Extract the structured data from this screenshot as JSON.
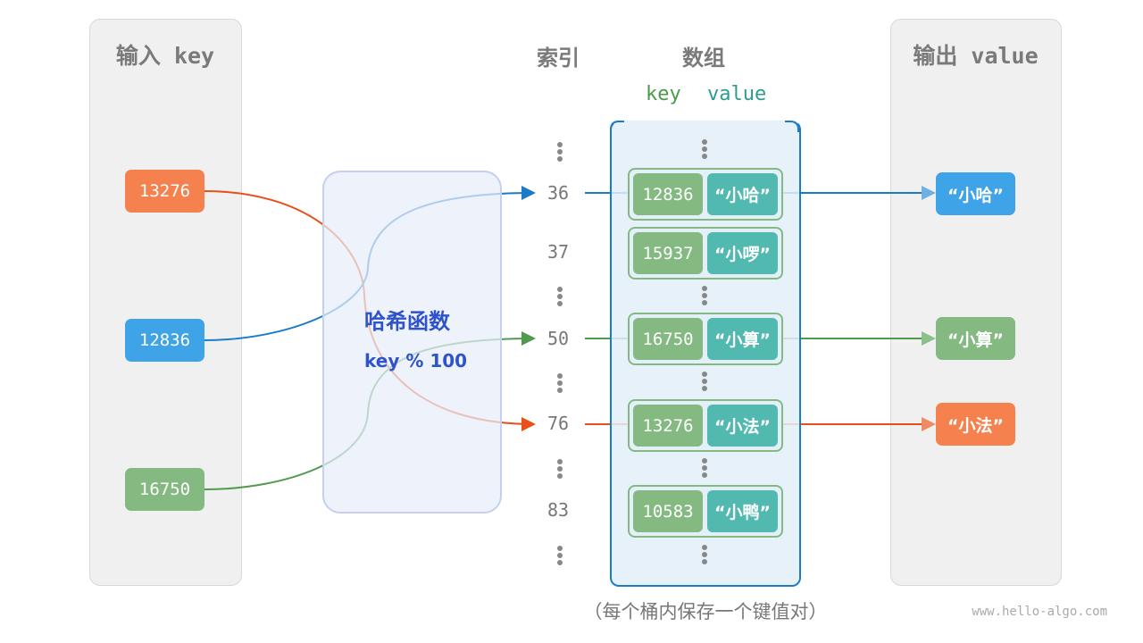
{
  "input_panel": {
    "title": "输入 key",
    "keys": [
      {
        "value": "13276",
        "color": "#f5814e"
      },
      {
        "value": "12836",
        "color": "#3ea3e7"
      },
      {
        "value": "16750",
        "color": "#84b981"
      }
    ]
  },
  "hash_function": {
    "title": "哈希函数",
    "formula": "key % 100"
  },
  "index_column": {
    "title": "索引",
    "indices": [
      "36",
      "37",
      "50",
      "76",
      "83"
    ]
  },
  "array": {
    "title": "数组",
    "key_label": "key",
    "value_label": "value",
    "entries": [
      {
        "key": "12836",
        "value": "“小哈”"
      },
      {
        "key": "15937",
        "value": "“小啰”"
      },
      {
        "key": "16750",
        "value": "“小算”"
      },
      {
        "key": "13276",
        "value": "“小法”"
      },
      {
        "key": "10583",
        "value": "“小鸭”"
      }
    ]
  },
  "output_panel": {
    "title": "输出 value",
    "values": [
      {
        "value": "“小哈”",
        "color": "#3ea3e7"
      },
      {
        "value": "“小算”",
        "color": "#84b981"
      },
      {
        "value": "“小法”",
        "color": "#f5814e"
      }
    ]
  },
  "caption": "（每个桶内保存一个键值对）",
  "watermark": "www.hello-algo.com"
}
